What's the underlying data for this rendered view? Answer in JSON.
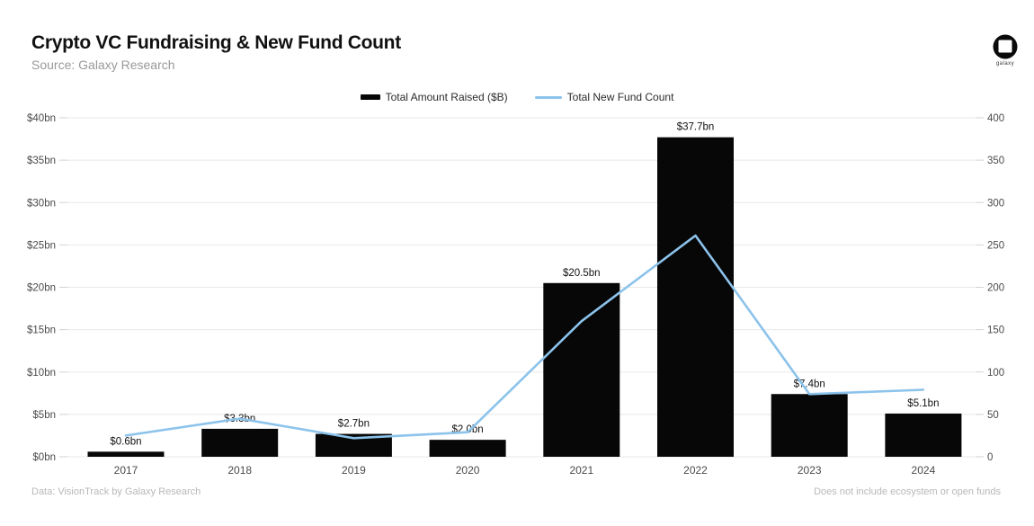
{
  "header": {
    "title": "Crypto VC Fundraising & New Fund Count",
    "subtitle": "Source: Galaxy Research",
    "logo_text": "galaxy"
  },
  "footer": {
    "left": "Data: VisionTrack by Galaxy Research",
    "right": "Does not include ecosystem or open funds"
  },
  "chart_data": {
    "type": "bar",
    "subtype": "bar+line dual axis",
    "title": "Crypto VC Fundraising & New Fund Count",
    "categories": [
      "2017",
      "2018",
      "2019",
      "2020",
      "2021",
      "2022",
      "2023",
      "2024"
    ],
    "series": [
      {
        "name": "Total Amount Raised ($B)",
        "type": "bar",
        "axis": "left",
        "color": "#070707",
        "values": [
          0.6,
          3.3,
          2.7,
          2.0,
          20.5,
          37.7,
          7.4,
          5.1
        ],
        "labels": [
          "$0.6bn",
          "$3.3bn",
          "$2.7bn",
          "$2.0bn",
          "$20.5bn",
          "$37.7bn",
          "$7.4bn",
          "$5.1bn"
        ]
      },
      {
        "name": "Total New Fund Count",
        "type": "line",
        "axis": "right",
        "color": "#8cc3eb",
        "values": [
          25,
          45,
          22,
          29,
          160,
          261,
          74,
          79
        ]
      }
    ],
    "left_axis": {
      "min": 0,
      "max": 40,
      "step": 5,
      "ticks": [
        "$0bn",
        "$5bn",
        "$10bn",
        "$15bn",
        "$20bn",
        "$25bn",
        "$30bn",
        "$35bn",
        "$40bn"
      ]
    },
    "right_axis": {
      "min": 0,
      "max": 400,
      "step": 50,
      "ticks": [
        "0",
        "50",
        "100",
        "150",
        "200",
        "250",
        "300",
        "350",
        "400"
      ]
    },
    "grid": true,
    "legend_position": "top-center",
    "colors": {
      "grid": "#e8e8e8",
      "tick_stub": "#d2d2d2",
      "axis_text": "#4a4a4a",
      "bar_label": "#111111"
    }
  }
}
